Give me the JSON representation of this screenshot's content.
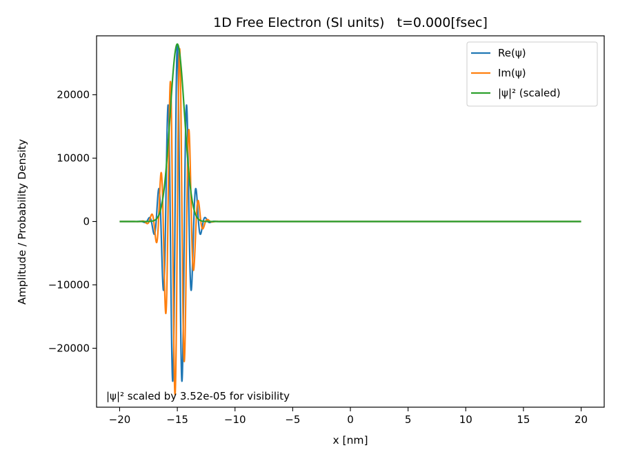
{
  "chart_data": {
    "type": "line",
    "title": "1D Free Electron (SI units)   t=0.000[fsec]",
    "xlabel": "x [nm]",
    "ylabel": "Amplitude / Probability Density",
    "xlim": [
      -22,
      22
    ],
    "ylim": [
      -29300,
      29300
    ],
    "xticks": [
      -20,
      -15,
      -10,
      -5,
      0,
      5,
      10,
      15,
      20
    ],
    "xtick_labels": [
      "−20",
      "−15",
      "−10",
      "−5",
      "0",
      "5",
      "10",
      "15",
      "20"
    ],
    "yticks": [
      -20000,
      -10000,
      0,
      10000,
      20000
    ],
    "ytick_labels": [
      "−20000",
      "−10000",
      "0",
      "10000",
      "20000"
    ],
    "legend_position": "top-right",
    "annotation": "|ψ|² scaled by 3.52e-05 for visibility",
    "x_range": [
      -20,
      20
    ],
    "wavepacket": {
      "center_nm": -15,
      "sigma_nm": 0.88,
      "wave_number_per_nm": 7.7,
      "peak_amplitude": 28000
    },
    "series": [
      {
        "name": "Re(ψ)",
        "component": "real",
        "color": "#1f77b4"
      },
      {
        "name": "Im(ψ)",
        "component": "imag",
        "color": "#ff7f0e"
      },
      {
        "name": "|ψ|² (scaled)",
        "component": "abs2",
        "color": "#2ca02c"
      }
    ]
  }
}
